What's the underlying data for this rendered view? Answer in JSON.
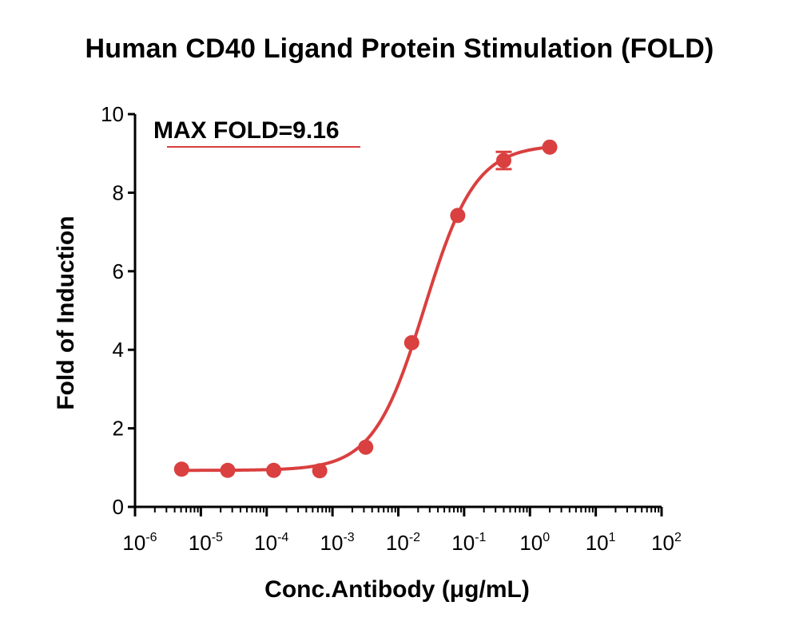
{
  "chart_data": {
    "type": "scatter",
    "title": "Human CD40 Ligand Protein Stimulation (FOLD)",
    "xlabel": "Conc.Antibody (μg/mL)",
    "ylabel": "Fold of Induction",
    "xscale": "log",
    "xlim": [
      1e-06,
      100
    ],
    "ylim": [
      0,
      10
    ],
    "x_ticks": [
      {
        "base": "10",
        "exp": "-6"
      },
      {
        "base": "10",
        "exp": "-5"
      },
      {
        "base": "10",
        "exp": "-4"
      },
      {
        "base": "10",
        "exp": "-3"
      },
      {
        "base": "10",
        "exp": "-2"
      },
      {
        "base": "10",
        "exp": "-1"
      },
      {
        "base": "10",
        "exp": "0"
      },
      {
        "base": "10",
        "exp": "1"
      },
      {
        "base": "10",
        "exp": "2"
      }
    ],
    "y_ticks": [
      "0",
      "2",
      "4",
      "6",
      "8",
      "10"
    ],
    "annotation": "MAX FOLD=9.16",
    "series": [
      {
        "x": [
          5.1e-06,
          2.56e-05,
          0.000128,
          0.00064,
          0.0032,
          0.016,
          0.08,
          0.4,
          2.0
        ],
        "y": [
          0.96,
          0.93,
          0.93,
          0.92,
          1.52,
          4.18,
          7.42,
          8.82,
          9.16
        ],
        "error": [
          0,
          0,
          0,
          0,
          0,
          0,
          0,
          0.22,
          0
        ],
        "color": "#d9403f",
        "fit": "4PL sigmoidal"
      }
    ],
    "grid": false
  }
}
